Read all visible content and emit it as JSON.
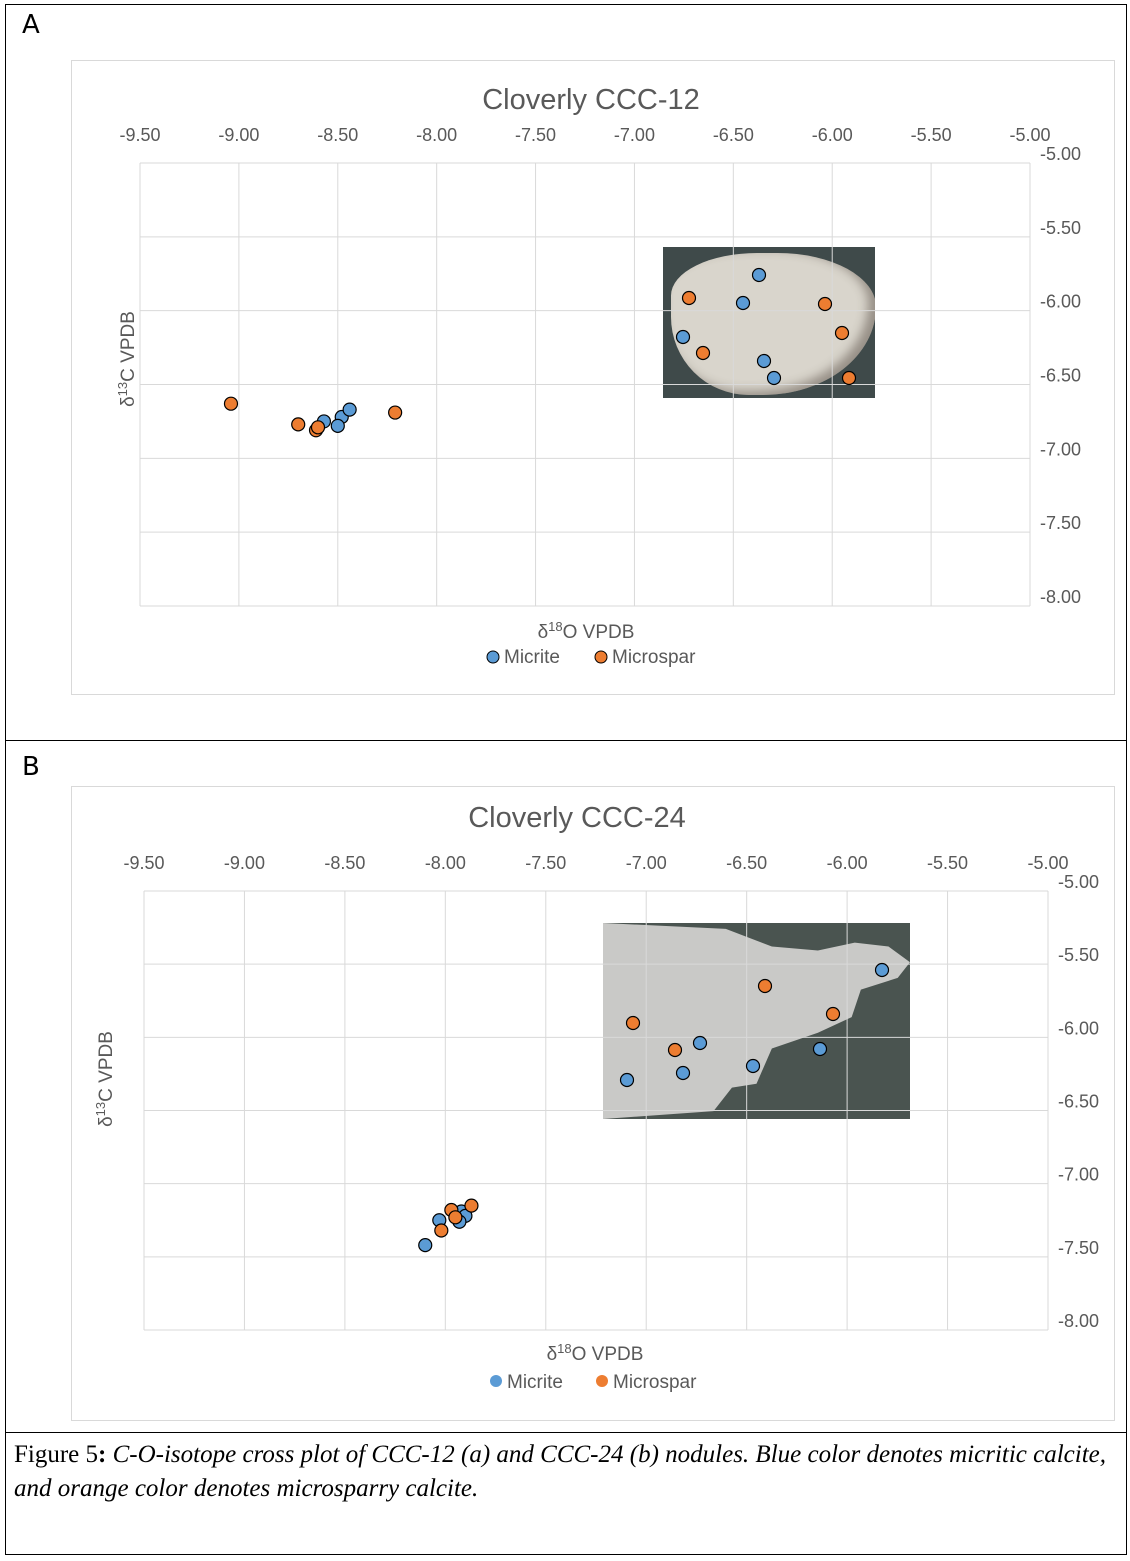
{
  "panels": [
    {
      "letter": "A",
      "chart_data": {
        "type": "scatter",
        "title": "Cloverly CCC-12",
        "xlabel": "δ18O VPDB",
        "ylabel": "δ13C VPDB",
        "x_axis_position": "top",
        "y_axis_position": "right",
        "xlim": [
          -9.5,
          -5.0
        ],
        "ylim": [
          -8.0,
          -5.0
        ],
        "x_ticks": [
          "-9.50",
          "-9.00",
          "-8.50",
          "-8.00",
          "-7.50",
          "-7.00",
          "-6.50",
          "-6.00",
          "-5.50",
          "-5.00"
        ],
        "y_ticks": [
          "-5.00",
          "-5.50",
          "-6.00",
          "-6.50",
          "-7.00",
          "-7.50",
          "-8.00"
        ],
        "grid": true,
        "legend_position": "bottom",
        "series": [
          {
            "name": "Micrite",
            "color": "#5b9bd5",
            "points": [
              [
                -8.57,
                -6.75
              ],
              [
                -8.48,
                -6.72
              ],
              [
                -8.5,
                -6.78
              ],
              [
                -8.44,
                -6.67
              ]
            ]
          },
          {
            "name": "Microspar",
            "color": "#ed7d31",
            "points": [
              [
                -9.04,
                -6.63
              ],
              [
                -8.7,
                -6.77
              ],
              [
                -8.61,
                -6.81
              ],
              [
                -8.6,
                -6.79
              ],
              [
                -8.21,
                -6.69
              ]
            ]
          }
        ]
      }
    },
    {
      "letter": "B",
      "chart_data": {
        "type": "scatter",
        "title": "Cloverly CCC-24",
        "xlabel": "δ18O VPDB",
        "ylabel": "δ13C VPDB",
        "x_axis_position": "top",
        "y_axis_position": "right",
        "xlim": [
          -9.5,
          -5.0
        ],
        "ylim": [
          -8.0,
          -5.0
        ],
        "x_ticks": [
          "-9.50",
          "-9.00",
          "-8.50",
          "-8.00",
          "-7.50",
          "-7.00",
          "-6.50",
          "-6.00",
          "-5.50",
          "-5.00"
        ],
        "y_ticks": [
          "-5.00",
          "-5.50",
          "-6.00",
          "-6.50",
          "-7.00",
          "-7.50",
          "-8.00"
        ],
        "grid": true,
        "legend_position": "bottom",
        "series": [
          {
            "name": "Micrite",
            "color": "#5b9bd5",
            "points": [
              [
                -8.1,
                -7.42
              ],
              [
                -8.03,
                -7.25
              ],
              [
                -7.92,
                -7.19
              ],
              [
                -7.9,
                -7.22
              ],
              [
                -7.93,
                -7.26
              ]
            ]
          },
          {
            "name": "Microspar",
            "color": "#ed7d31",
            "points": [
              [
                -8.02,
                -7.32
              ],
              [
                -7.97,
                -7.18
              ],
              [
                -7.95,
                -7.23
              ],
              [
                -7.87,
                -7.15
              ]
            ]
          }
        ]
      }
    }
  ],
  "caption": {
    "prefix": "Figure 5",
    "colon": ":",
    "text": "C-O-isotope cross plot of CCC-12 (a) and CCC-24 (b) nodules. Blue color denotes micritic calcite, and orange color denotes microsparry calcite."
  }
}
